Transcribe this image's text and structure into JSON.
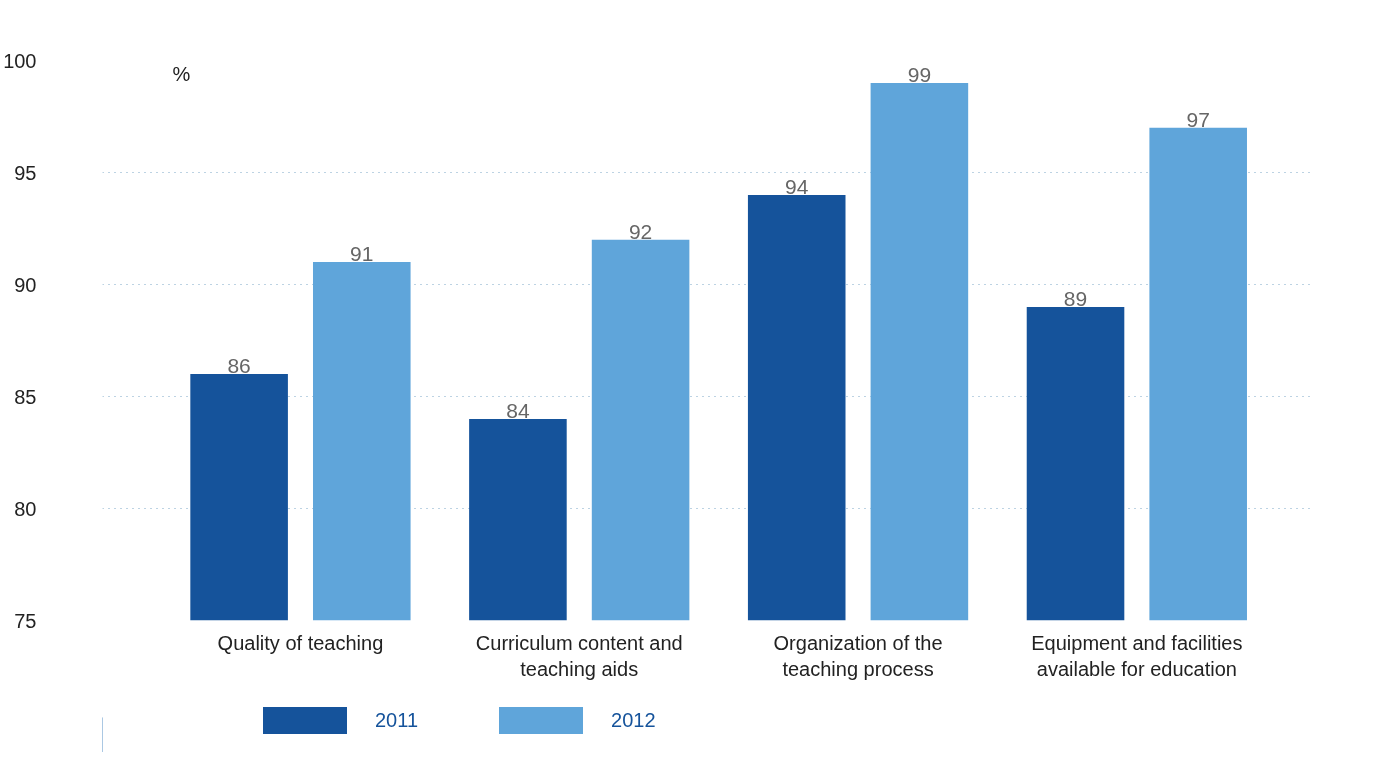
{
  "chart_data": {
    "type": "bar",
    "ylabel": "%",
    "categories": [
      "Quality of teaching",
      "Curriculum content and teaching aids",
      "Organization of the teaching process",
      "Equipment and facilities available for education"
    ],
    "series": [
      {
        "name": "2011",
        "color": "#15539b",
        "values": [
          86,
          84,
          94,
          89
        ]
      },
      {
        "name": "2012",
        "color": "#5fa5da",
        "values": [
          91,
          92,
          99,
          97
        ]
      }
    ],
    "ylim": [
      75,
      100
    ],
    "yticks": [
      75,
      80,
      85,
      90,
      95,
      100
    ],
    "data_labels": true,
    "grid": "y",
    "legend": "bottom"
  }
}
